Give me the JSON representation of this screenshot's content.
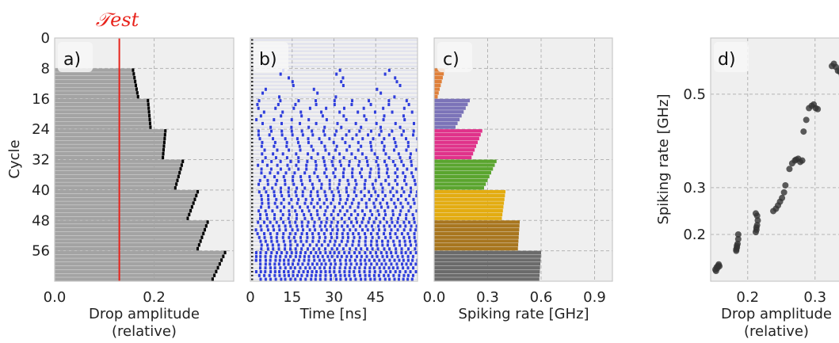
{
  "colors": {
    "panel_bg": "#efefef",
    "grid": "#b4b4b4",
    "bar_gray": "#a3a3a3",
    "bar_edge": "#000000",
    "threshold": "#e8231c",
    "spike": "#2e3ddc",
    "rate_groups": [
      "#e0803a",
      "#7b73b8",
      "#e0328a",
      "#5aa52e",
      "#e3ac11",
      "#a8761f",
      "#6b6b6b"
    ],
    "scatter": "#333333"
  },
  "chart_data": [
    {
      "id": "a",
      "type": "bar",
      "orientation": "horizontal",
      "panel_label": "a)",
      "title": "",
      "xlabel": "Drop amplitude\n(relative)",
      "ylabel": "Cycle",
      "xlim": [
        0.0,
        0.36
      ],
      "ylim": [
        0,
        64
      ],
      "y_inverted": true,
      "xticks": [
        "0.0",
        "0.2"
      ],
      "yticks": [
        "0",
        "8",
        "16",
        "24",
        "32",
        "40",
        "48",
        "56"
      ],
      "grid": true,
      "threshold_label": "𝒯est",
      "threshold_x": 0.13,
      "groups": [
        {
          "cycles": [
            8,
            15
          ],
          "amplitude_start": 0.16,
          "amplitude_end": 0.17
        },
        {
          "cycles": [
            16,
            23
          ],
          "amplitude_start": 0.19,
          "amplitude_end": 0.195
        },
        {
          "cycles": [
            24,
            31
          ],
          "amplitude_start": 0.225,
          "amplitude_end": 0.22
        },
        {
          "cycles": [
            32,
            39
          ],
          "amplitude_start": 0.26,
          "amplitude_end": 0.245
        },
        {
          "cycles": [
            40,
            47
          ],
          "amplitude_start": 0.29,
          "amplitude_end": 0.27
        },
        {
          "cycles": [
            48,
            55
          ],
          "amplitude_start": 0.31,
          "amplitude_end": 0.29
        },
        {
          "cycles": [
            56,
            63
          ],
          "amplitude_start": 0.345,
          "amplitude_end": 0.32
        }
      ]
    },
    {
      "id": "b",
      "type": "raster",
      "panel_label": "b)",
      "title": "",
      "xlabel": "Time [ns]",
      "ylabel": "",
      "xlim": [
        0,
        60
      ],
      "ylim": [
        0,
        64
      ],
      "y_inverted": true,
      "xticks": [
        "0",
        "15",
        "30",
        "45"
      ],
      "grid": true,
      "groups": [
        {
          "cycles": [
            0,
            7
          ],
          "rate_ghz": 0.0
        },
        {
          "cycles": [
            8,
            15
          ],
          "rate_ghz": 0.05
        },
        {
          "cycles": [
            16,
            23
          ],
          "rate_ghz": 0.15
        },
        {
          "cycles": [
            24,
            31
          ],
          "rate_ghz": 0.24
        },
        {
          "cycles": [
            32,
            39
          ],
          "rate_ghz": 0.31
        },
        {
          "cycles": [
            40,
            47
          ],
          "rate_ghz": 0.38
        },
        {
          "cycles": [
            48,
            55
          ],
          "rate_ghz": 0.47
        },
        {
          "cycles": [
            56,
            63
          ],
          "rate_ghz": 0.57
        }
      ]
    },
    {
      "id": "c",
      "type": "bar",
      "orientation": "horizontal",
      "panel_label": "c)",
      "title": "",
      "xlabel": "Spiking rate [GHz]",
      "ylabel": "",
      "xlim": [
        0.0,
        1.0
      ],
      "ylim": [
        0,
        64
      ],
      "y_inverted": true,
      "xticks": [
        "0.0",
        "0.3",
        "0.6",
        "0.9"
      ],
      "grid": true,
      "groups": [
        {
          "cycles": [
            8,
            15
          ],
          "rate_start": 0.06,
          "rate_end": 0.02
        },
        {
          "cycles": [
            16,
            23
          ],
          "rate_start": 0.2,
          "rate_end": 0.12
        },
        {
          "cycles": [
            24,
            31
          ],
          "rate_start": 0.27,
          "rate_end": 0.21
        },
        {
          "cycles": [
            32,
            39
          ],
          "rate_start": 0.35,
          "rate_end": 0.28
        },
        {
          "cycles": [
            40,
            47
          ],
          "rate_start": 0.4,
          "rate_end": 0.38
        },
        {
          "cycles": [
            48,
            55
          ],
          "rate_start": 0.48,
          "rate_end": 0.47
        },
        {
          "cycles": [
            56,
            63
          ],
          "rate_start": 0.6,
          "rate_end": 0.59
        }
      ]
    },
    {
      "id": "d",
      "type": "scatter",
      "panel_label": "d)",
      "title": "",
      "xlabel": "Drop amplitude\n(relative)",
      "ylabel": "Spiking rate [GHz]",
      "xlim": [
        0.145,
        0.345
      ],
      "ylim": [
        0.1,
        0.62
      ],
      "xticks": [
        "0.2",
        "0.3"
      ],
      "yticks": [
        "0.2",
        "0.3",
        "0.5"
      ],
      "ytick_values": [
        0.2,
        0.3,
        0.5
      ],
      "grid": true,
      "x": [
        0.152,
        0.154,
        0.156,
        0.158,
        0.155,
        0.153,
        0.157,
        0.183,
        0.184,
        0.185,
        0.186,
        0.184,
        0.183,
        0.186,
        0.212,
        0.213,
        0.214,
        0.215,
        0.213,
        0.214,
        0.212,
        0.238,
        0.242,
        0.245,
        0.248,
        0.251,
        0.254,
        0.256,
        0.262,
        0.266,
        0.27,
        0.272,
        0.275,
        0.278,
        0.281,
        0.283,
        0.287,
        0.291,
        0.295,
        0.298,
        0.301,
        0.304,
        0.325,
        0.328,
        0.331,
        0.334,
        0.337,
        0.34
      ],
      "y": [
        0.125,
        0.13,
        0.133,
        0.132,
        0.128,
        0.122,
        0.136,
        0.165,
        0.172,
        0.18,
        0.19,
        0.176,
        0.168,
        0.2,
        0.205,
        0.215,
        0.22,
        0.23,
        0.21,
        0.24,
        0.245,
        0.25,
        0.255,
        0.262,
        0.27,
        0.278,
        0.29,
        0.305,
        0.34,
        0.352,
        0.358,
        0.36,
        0.362,
        0.355,
        0.358,
        0.42,
        0.445,
        0.47,
        0.475,
        0.478,
        0.47,
        0.468,
        0.56,
        0.565,
        0.558,
        0.55,
        0.548,
        0.54
      ]
    }
  ]
}
